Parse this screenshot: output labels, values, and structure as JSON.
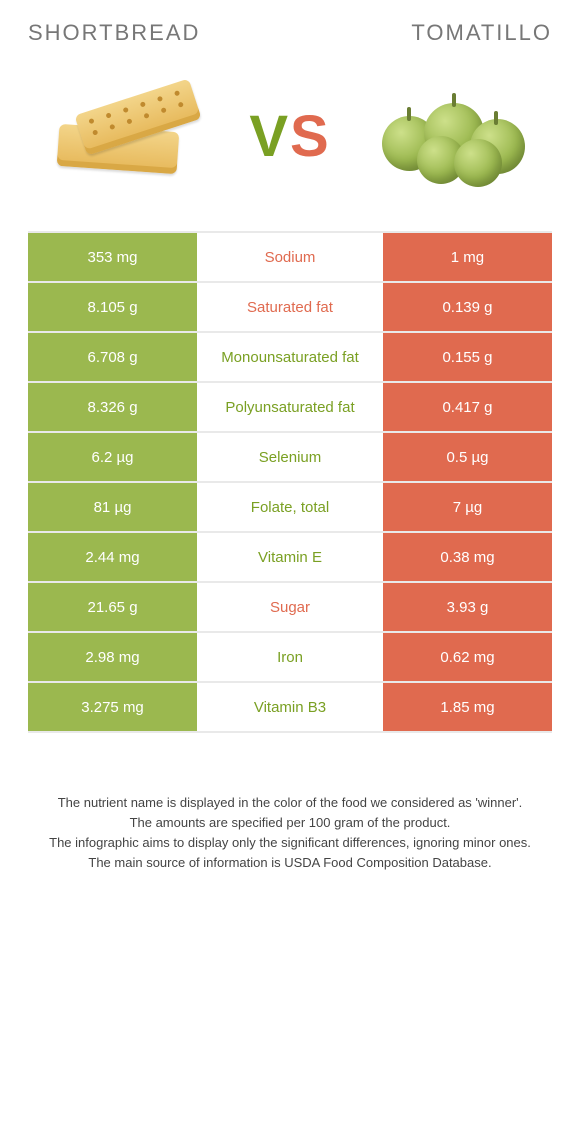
{
  "titles": {
    "left": "Shortbread",
    "right": "Tomatillo"
  },
  "vs": {
    "v": "V",
    "s": "S"
  },
  "colors": {
    "left_bg": "#9bb84f",
    "right_bg": "#e06a4f",
    "left_text": "#7aa023",
    "right_text": "#e06a4f",
    "row_border": "#e9e9e9",
    "cell_text": "#ffffff"
  },
  "rows": [
    {
      "left": "353 mg",
      "label": "Sodium",
      "right": "1 mg",
      "winner": "right"
    },
    {
      "left": "8.105 g",
      "label": "Saturated fat",
      "right": "0.139 g",
      "winner": "right"
    },
    {
      "left": "6.708 g",
      "label": "Monounsaturated fat",
      "right": "0.155 g",
      "winner": "left"
    },
    {
      "left": "8.326 g",
      "label": "Polyunsaturated fat",
      "right": "0.417 g",
      "winner": "left"
    },
    {
      "left": "6.2 µg",
      "label": "Selenium",
      "right": "0.5 µg",
      "winner": "left"
    },
    {
      "left": "81 µg",
      "label": "Folate, total",
      "right": "7 µg",
      "winner": "left"
    },
    {
      "left": "2.44 mg",
      "label": "Vitamin E",
      "right": "0.38 mg",
      "winner": "left"
    },
    {
      "left": "21.65 g",
      "label": "Sugar",
      "right": "3.93 g",
      "winner": "right"
    },
    {
      "left": "2.98 mg",
      "label": "Iron",
      "right": "0.62 mg",
      "winner": "left"
    },
    {
      "left": "3.275 mg",
      "label": "Vitamin B3",
      "right": "1.85 mg",
      "winner": "left"
    }
  ],
  "notes": [
    "The nutrient name is displayed in the color of the food we considered as 'winner'.",
    "The amounts are specified per 100 gram of the product.",
    "The infographic aims to display only the significant differences, ignoring minor ones.",
    "The main source of information is USDA Food Composition Database."
  ]
}
